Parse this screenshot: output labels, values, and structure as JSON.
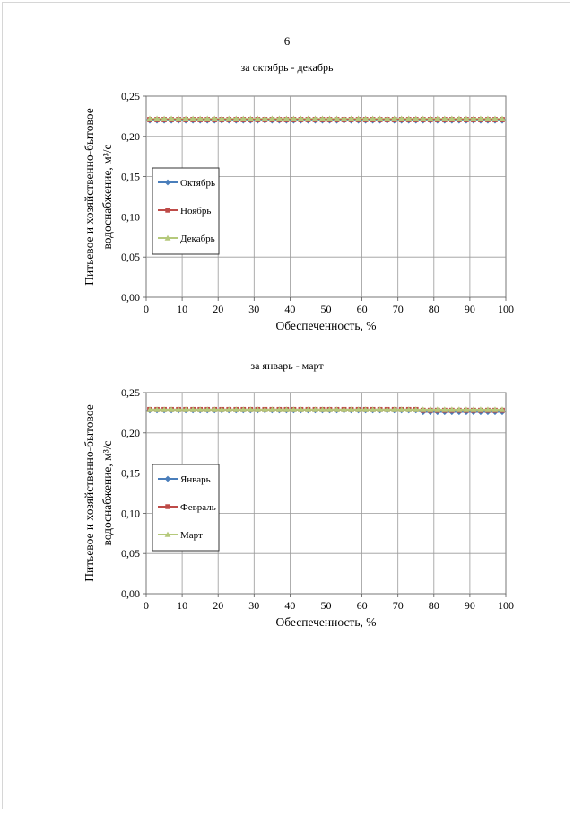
{
  "page_number": "6",
  "chart_data": [
    {
      "type": "line",
      "title": "за октябрь - декабрь",
      "xlabel": "Обеспеченность, %",
      "ylabel_line1": "Питьевое и хозяйственно-бытовое",
      "ylabel_line2": "водоснабжение, м³/с",
      "xlim": [
        0,
        100
      ],
      "ylim": [
        0,
        0.25
      ],
      "xticks": [
        "0",
        "10",
        "20",
        "30",
        "40",
        "50",
        "60",
        "70",
        "80",
        "90",
        "100"
      ],
      "yticks": [
        "0,00",
        "0,05",
        "0,10",
        "0,15",
        "0,20",
        "0,25"
      ],
      "grid": true,
      "legend_position": "left-middle",
      "x_start": 1,
      "x_end": 99,
      "x_step": 2,
      "series": [
        {
          "name": "Октябрь",
          "color": "#4a7ebb",
          "marker": "diamond",
          "segments": [
            {
              "from": 0,
              "to": 100,
              "value": 0.22
            }
          ]
        },
        {
          "name": "Ноябрь",
          "color": "#be4b48",
          "marker": "square",
          "segments": [
            {
              "from": 0,
              "to": 100,
              "value": 0.221
            }
          ]
        },
        {
          "name": "Декабрь",
          "color": "#b5c97b",
          "marker": "triangle",
          "segments": [
            {
              "from": 0,
              "to": 100,
              "value": 0.222
            }
          ]
        }
      ]
    },
    {
      "type": "line",
      "title": "за январь - март",
      "xlabel": "Обеспеченность, %",
      "ylabel_line1": "Питьевое и хозяйственно-бытовое",
      "ylabel_line2": "водоснабжение, м³/с",
      "xlim": [
        0,
        100
      ],
      "ylim": [
        0,
        0.25
      ],
      "xticks": [
        "0",
        "10",
        "20",
        "30",
        "40",
        "50",
        "60",
        "70",
        "80",
        "90",
        "100"
      ],
      "yticks": [
        "0,00",
        "0,05",
        "0,10",
        "0,15",
        "0,20",
        "0,25"
      ],
      "grid": true,
      "legend_position": "left-middle",
      "x_start": 1,
      "x_end": 99,
      "x_step": 2,
      "series": [
        {
          "name": "Январь",
          "color": "#4a7ebb",
          "marker": "diamond",
          "segments": [
            {
              "from": 0,
              "to": 75,
              "value": 0.228
            },
            {
              "from": 75,
              "to": 100,
              "value": 0.226
            }
          ]
        },
        {
          "name": "Февраль",
          "color": "#be4b48",
          "marker": "square",
          "segments": [
            {
              "from": 0,
              "to": 75,
              "value": 0.229
            },
            {
              "from": 75,
              "to": 100,
              "value": 0.228
            }
          ]
        },
        {
          "name": "Март",
          "color": "#b5c97b",
          "marker": "triangle",
          "segments": [
            {
              "from": 0,
              "to": 100,
              "value": 0.229
            }
          ]
        }
      ]
    }
  ]
}
